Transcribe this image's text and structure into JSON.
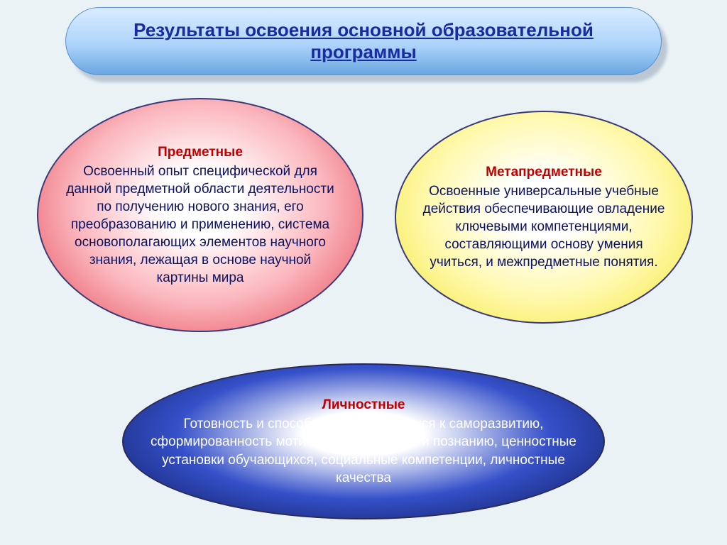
{
  "background_color": "#eaf2f6",
  "title": {
    "text": "Результаты освоения основной образовательной программы",
    "fontsize": 26,
    "color": "#1a2aa0",
    "pill_gradient_top": "#d9ecff",
    "pill_gradient_mid": "#aed4fb",
    "pill_gradient_bottom": "#6aa7e0",
    "pill_border": "#5b8fd6"
  },
  "ellipses": {
    "red": {
      "heading": "Предметные",
      "body": "Освоенный опыт специфической для данной предметной области деятельности по получению нового знания, его преобразованию и применению, система основополагающих элементов научного знания, лежащая в основе научной картины мира",
      "heading_color": "#c00000",
      "body_color": "#0b1260",
      "fontsize": 19,
      "gradient_center": "#ffffff",
      "gradient_mid": "#fbb6bd",
      "gradient_edge": "#e23b4a",
      "border_color": "#3a3a7a"
    },
    "yellow": {
      "heading": "Метапредметные",
      "body": "Освоенные универсальные учебные действия обеспечивающие овладение ключевыми компетенциями, составляющими основу умения учиться, и межпредметные понятия.",
      "heading_color": "#c00000",
      "body_color": "#0b1260",
      "fontsize": 19,
      "gradient_center": "#ffffff",
      "gradient_mid": "#fff9b0",
      "gradient_edge": "#f5e631",
      "border_color": "#3a3a7a"
    },
    "blue": {
      "heading": "Личностные",
      "body": "Готовность и способность обучающихся к саморазвитию, сформированность мотивации к обучению и познанию, ценностные установки обучающихся, социальные компетенции, личностные качества",
      "heading_color": "#c00000",
      "body_color": "#ffffff",
      "fontsize": 19,
      "gradient_center": "#ffffff",
      "gradient_mid": "#3550c9",
      "gradient_edge": "#0a1550",
      "border_color": "#2a2a55"
    }
  }
}
